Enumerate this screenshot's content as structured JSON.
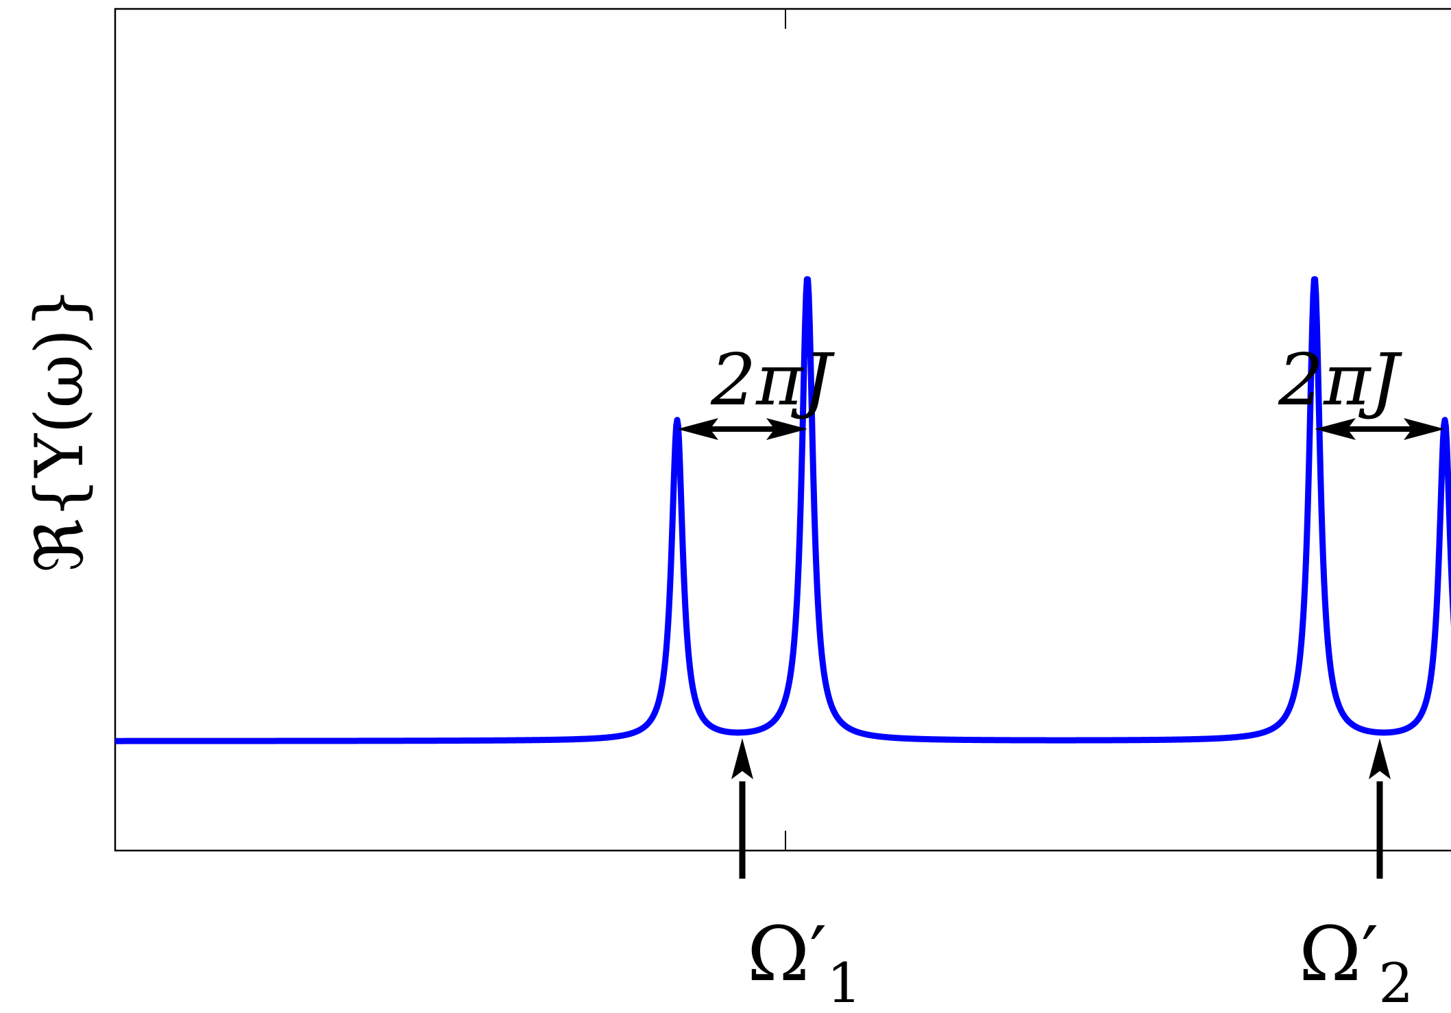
{
  "chart_data": {
    "type": "line",
    "title": "",
    "xlabel": "",
    "ylabel": "ℜ{Y(ω)}",
    "xlim": [
      0,
      1
    ],
    "ylim": [
      0,
      1
    ],
    "x_ticks_visible": false,
    "y_ticks_visible": false,
    "grid": false,
    "line_color": "#0000ff",
    "annotation_color": "#000000",
    "series": [
      {
        "name": "",
        "peaks": [
          {
            "x": 0.41,
            "height": 0.38
          },
          {
            "x": 0.505,
            "height": 0.55
          },
          {
            "x": 0.875,
            "height": 0.55
          },
          {
            "x": 0.97,
            "height": 0.38
          }
        ],
        "peak_width": 0.005,
        "baseline": 0.13
      }
    ],
    "annotations": {
      "splitting_label": "2πJ",
      "omega1_label": "Ω′",
      "omega1_sub": "1",
      "omega2_label": "Ω′",
      "omega2_sub": "2",
      "omega1_x": 0.4575,
      "omega2_x": 0.9225
    }
  }
}
